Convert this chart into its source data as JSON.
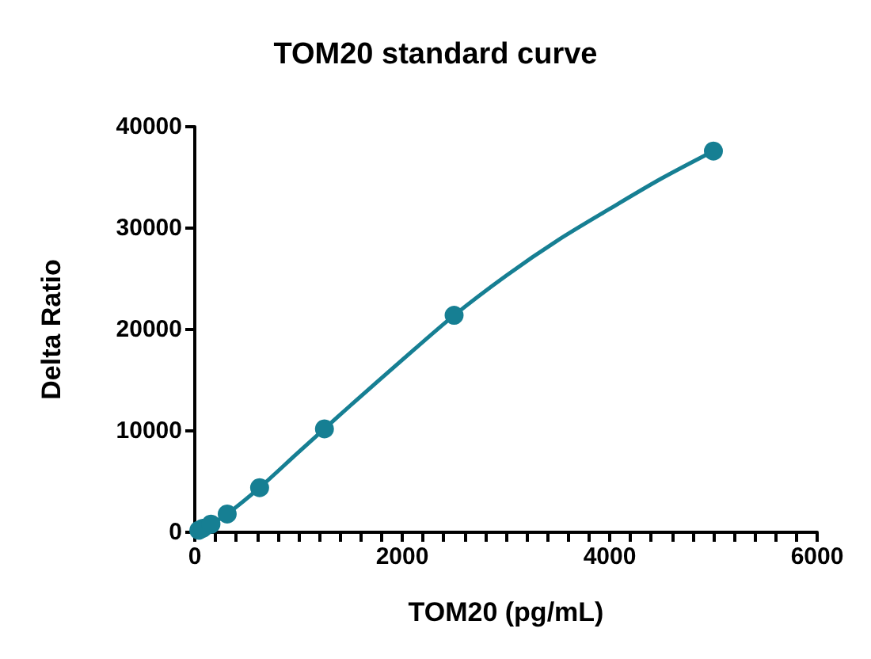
{
  "chart_data": {
    "type": "scatter",
    "title": "TOM20 standard curve",
    "xlabel": "TOM20 (pg/mL)",
    "ylabel": "Delta Ratio",
    "series": [
      {
        "color": "#167f93",
        "marker": "circle",
        "x": [
          39,
          78,
          156,
          312.5,
          625,
          1250,
          2500,
          5000
        ],
        "values": [
          200,
          400,
          800,
          1800,
          4400,
          10200,
          21400,
          37600
        ]
      },
      {
        "type": "line",
        "color": "#167f93",
        "marker": "none",
        "line_style": "solid",
        "x": [
          0,
          39,
          78,
          156,
          312.5,
          625,
          1000,
          1250,
          1500,
          2000,
          2500,
          3000,
          3500,
          4000,
          4500,
          5000
        ],
        "values": [
          0,
          200,
          400,
          800,
          1800,
          4400,
          7900,
          10200,
          12500,
          17000,
          21400,
          25300,
          28800,
          31900,
          34900,
          37600
        ]
      }
    ],
    "xlim": [
      0,
      6000
    ],
    "xticks": [
      0,
      {
        "value": 200,
        "label": null
      },
      {
        "value": 400,
        "label": null
      },
      {
        "value": 600,
        "label": null
      },
      {
        "value": 800,
        "label": null
      },
      {
        "value": 1000,
        "label": null
      },
      {
        "value": 1200,
        "label": null
      },
      {
        "value": 1400,
        "label": null
      },
      {
        "value": 1600,
        "label": null
      },
      {
        "value": 1800,
        "label": null
      },
      2000,
      {
        "value": 2200,
        "label": null
      },
      {
        "value": 2400,
        "label": null
      },
      {
        "value": 2600,
        "label": null
      },
      {
        "value": 2800,
        "label": null
      },
      {
        "value": 3000,
        "label": null
      },
      {
        "value": 3200,
        "label": null
      },
      {
        "value": 3400,
        "label": null
      },
      {
        "value": 3600,
        "label": null
      },
      {
        "value": 3800,
        "label": null
      },
      4000,
      {
        "value": 4200,
        "label": null
      },
      {
        "value": 4400,
        "label": null
      },
      {
        "value": 4600,
        "label": null
      },
      {
        "value": 4800,
        "label": null
      },
      {
        "value": 5000,
        "label": null
      },
      {
        "value": 5200,
        "label": null
      },
      {
        "value": 5400,
        "label": null
      },
      {
        "value": 5600,
        "label": null
      },
      {
        "value": 5800,
        "label": null
      },
      6000
    ],
    "ylim": [
      0,
      40000
    ],
    "yticks": [
      0,
      10000,
      20000,
      30000,
      40000
    ]
  }
}
